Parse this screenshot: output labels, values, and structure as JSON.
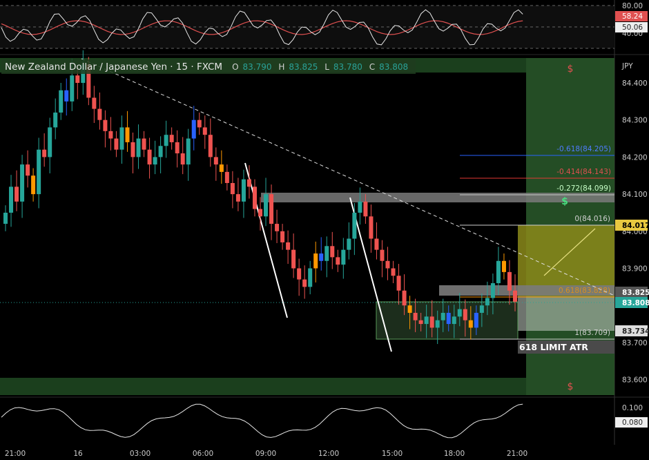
{
  "symbol_title": "New Zealand Dollar / Japanese Yen · 15 · FXCM",
  "ohlc": {
    "o_label": "O",
    "o": "83.790",
    "h_label": "H",
    "h": "83.825",
    "l_label": "L",
    "l": "83.780",
    "c_label": "C",
    "c": "83.808"
  },
  "currency": "JPY",
  "colors": {
    "up": "#26a69a",
    "down": "#ef5350",
    "orange": "#ff9800",
    "blue": "#2962ff",
    "green_zone": "#1e4620",
    "yellow_zone": "#8b8a1a",
    "gray_band": "#7a7a7a"
  },
  "price_axis": {
    "ticks": [
      "84.400",
      "84.300",
      "84.200",
      "84.100",
      "84.000",
      "83.900",
      "83.800",
      "83.700",
      "83.600"
    ],
    "badges": {
      "fib_top": "84.017",
      "level_825": "83.825",
      "last": "83.808",
      "level_734": "83.734"
    }
  },
  "rsi_axis": {
    "ticks": [
      "80.00",
      "40.00"
    ],
    "badge_red": "58.24",
    "badge_white": "50.06"
  },
  "osc_axis": {
    "ticks": [
      "0.100"
    ],
    "badge": "0.080"
  },
  "time_axis": [
    "21:00",
    "16",
    "03:00",
    "06:00",
    "09:00",
    "12:00",
    "15:00",
    "18:00",
    "21:00"
  ],
  "fib_labels": {
    "n618": "-0.618(84.205)",
    "n414": "-0.414(84.143)",
    "n272": "-0.272(84.099)",
    "zero": "0(84.016)",
    "one": "1(83.709)",
    "orange_mid": "0.618(83.828)"
  },
  "limit_label": "618 LIMIT ATR",
  "dollar_marks": [
    "$",
    "$",
    "$"
  ],
  "chart_data": {
    "type": "candlestick",
    "title": "New Zealand Dollar / Japanese Yen · 15 · FXCM",
    "ylabel": "JPY",
    "ylim": [
      83.55,
      84.47
    ],
    "x_ticks": [
      "21:00",
      "16",
      "03:00",
      "06:00",
      "09:00",
      "12:00",
      "15:00",
      "18:00",
      "21:00"
    ],
    "close_series": [
      84.05,
      84.12,
      84.08,
      84.18,
      84.15,
      84.1,
      84.22,
      84.2,
      84.28,
      84.32,
      84.38,
      84.35,
      84.42,
      84.4,
      84.45,
      84.36,
      84.33,
      84.3,
      84.27,
      84.25,
      84.22,
      84.28,
      84.24,
      84.2,
      84.25,
      84.22,
      84.18,
      84.2,
      84.23,
      84.26,
      84.24,
      84.21,
      84.18,
      84.25,
      84.3,
      84.28,
      84.26,
      84.2,
      84.18,
      84.16,
      84.13,
      84.1,
      84.08,
      84.14,
      84.12,
      84.06,
      84.04,
      84.1,
      84.02,
      84.0,
      83.97,
      83.95,
      83.9,
      83.87,
      83.85,
      83.9,
      83.94,
      83.92,
      83.96,
      83.93,
      83.91,
      83.95,
      83.98,
      84.05,
      84.08,
      84.04,
      83.98,
      83.95,
      83.92,
      83.9,
      83.88,
      83.84,
      83.8,
      83.78,
      83.76,
      83.75,
      83.77,
      83.74,
      83.76,
      83.78,
      83.75,
      83.77,
      83.79,
      83.76,
      83.74,
      83.78,
      83.8,
      83.82,
      83.86,
      83.92,
      83.89,
      83.84,
      83.81
    ],
    "rsi_ylim": [
      30,
      85
    ],
    "oscillator_badge": 0.08
  }
}
